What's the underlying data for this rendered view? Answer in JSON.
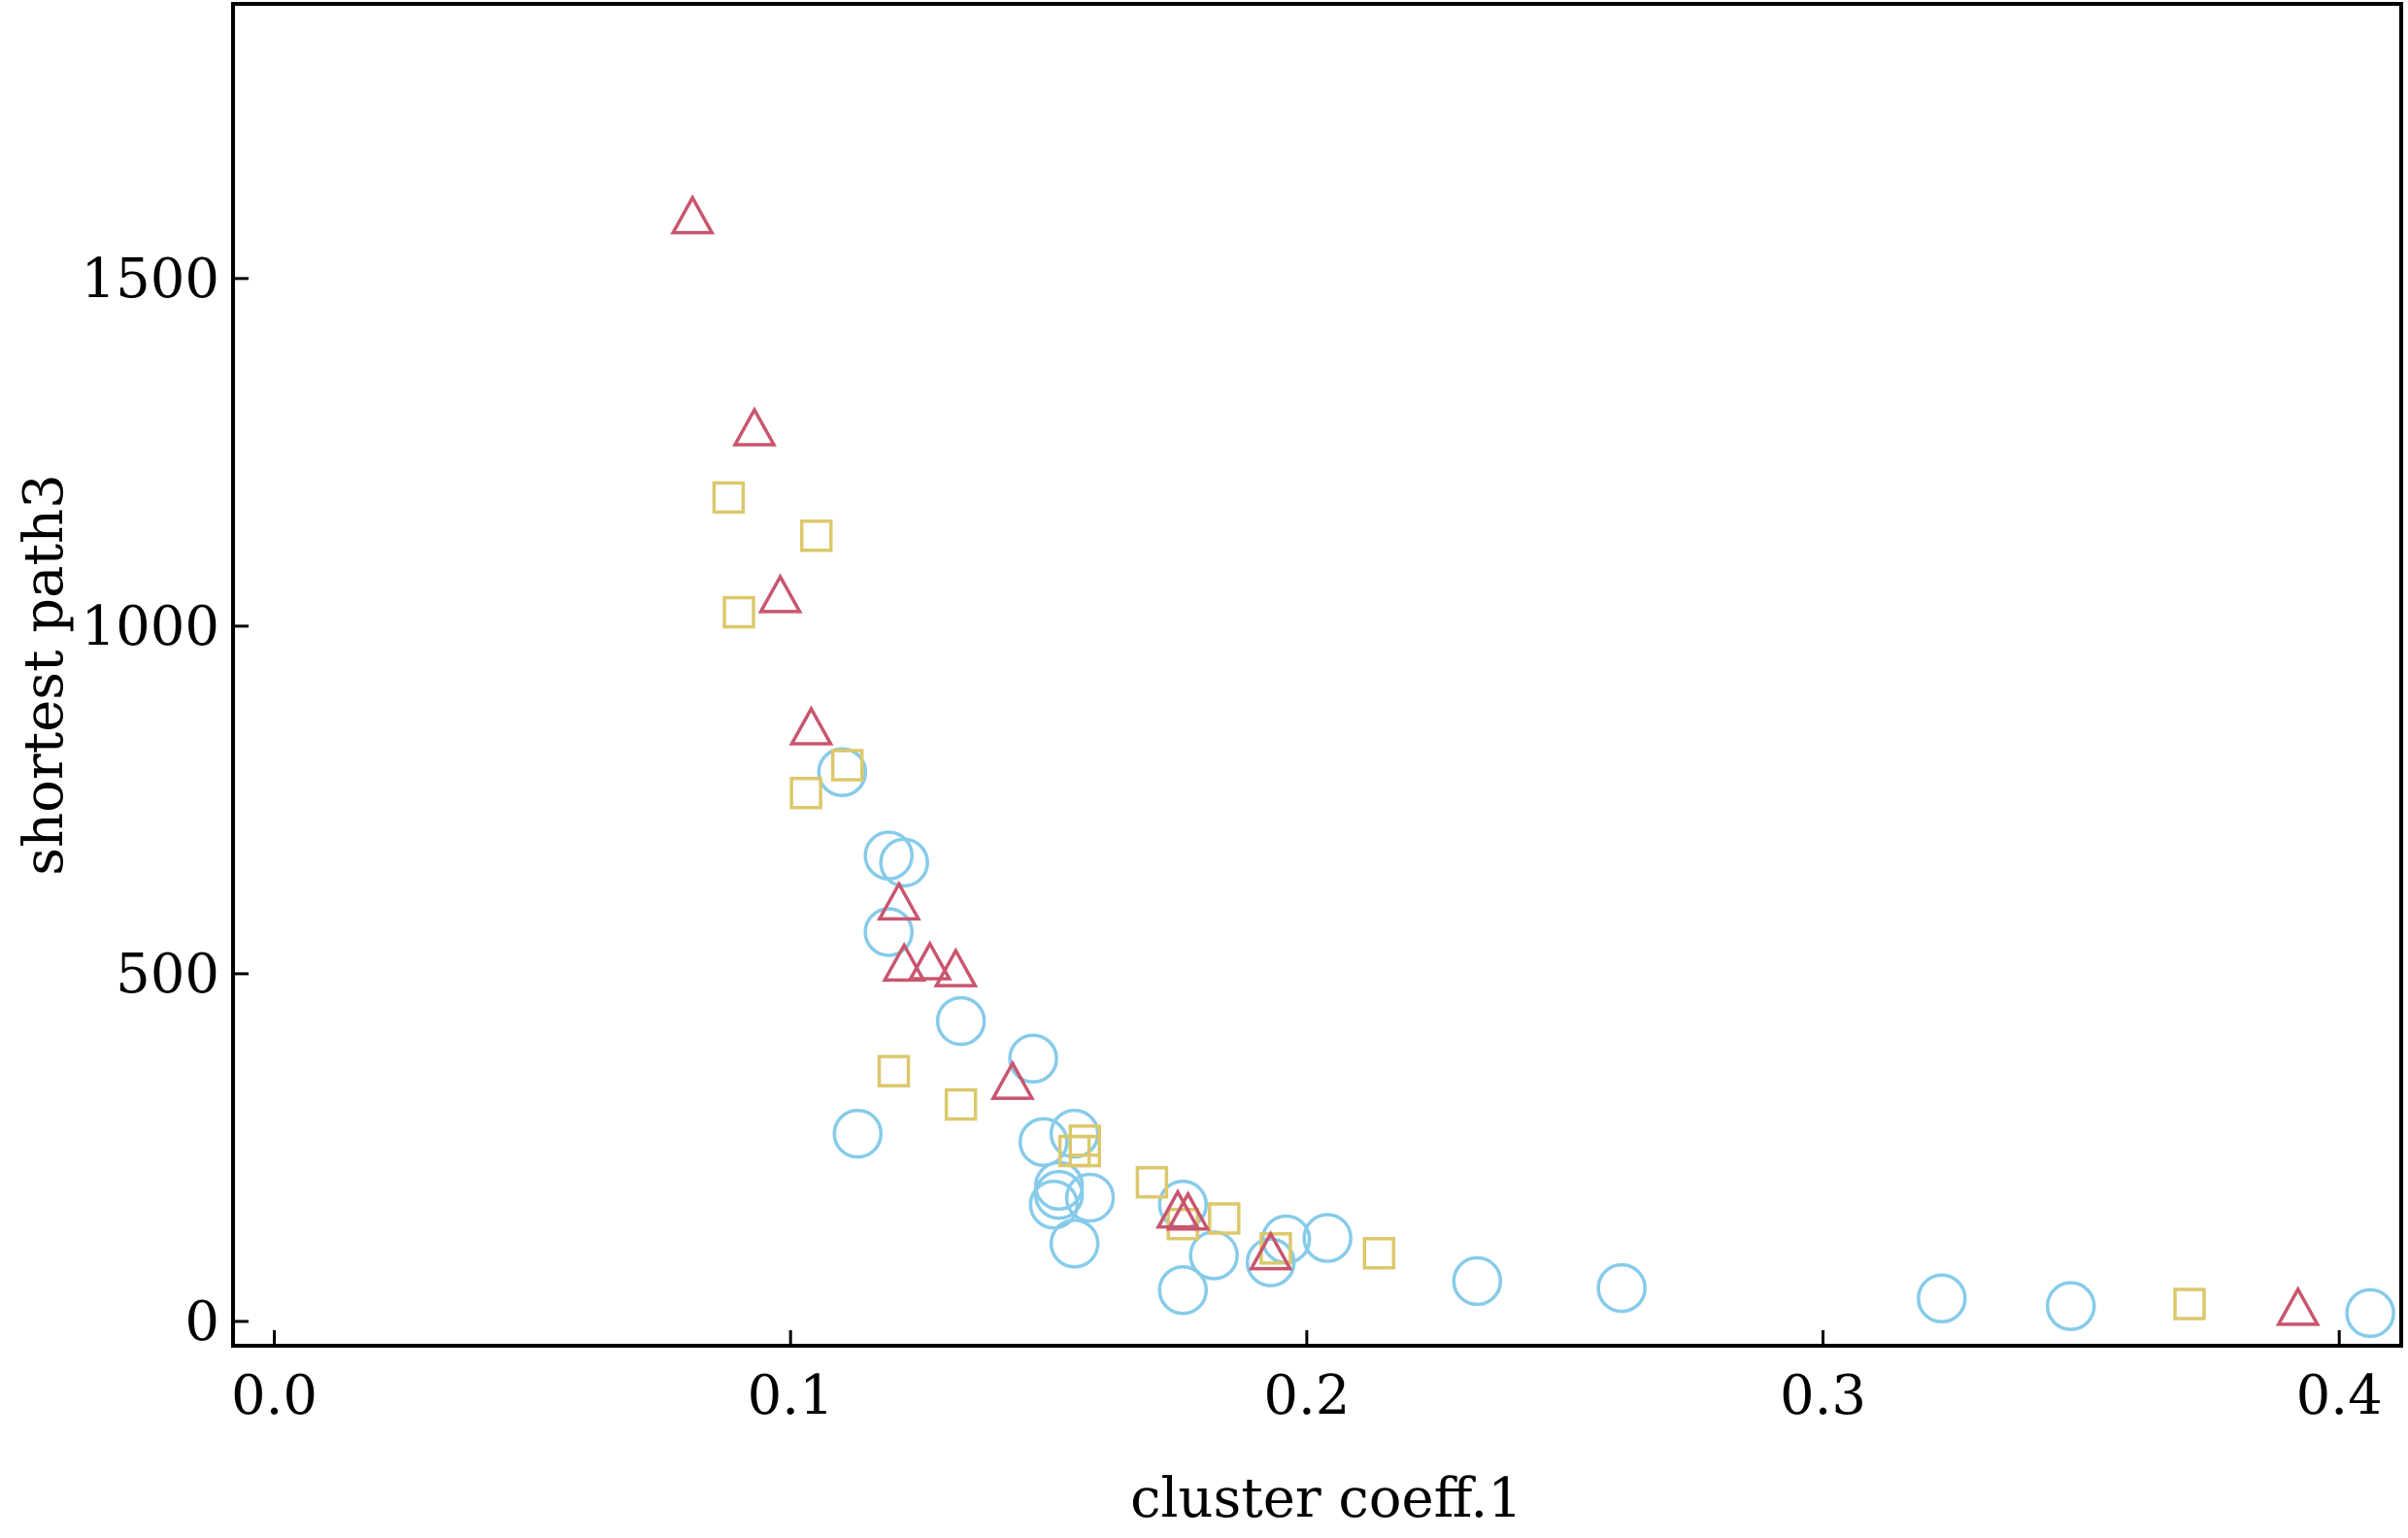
{
  "chart_data": {
    "type": "scatter",
    "xlabel": "cluster coeff.1",
    "ylabel": "shortest path3",
    "xlim": [
      -0.008,
      0.412
    ],
    "ylim": [
      -35,
      1895
    ],
    "xticks": [
      0.0,
      0.1,
      0.2,
      0.3,
      0.4
    ],
    "xtick_labels": [
      "0.0",
      "0.1",
      "0.2",
      "0.3",
      "0.4"
    ],
    "yticks": [
      0,
      500,
      1000,
      1500
    ],
    "ytick_labels": [
      "0",
      "500",
      "1000",
      "1500"
    ],
    "grid": false,
    "legend": "none",
    "series": [
      {
        "marker": "circle",
        "color": "#87cbea",
        "points": [
          [
            0.11,
            790
          ],
          [
            0.119,
            670
          ],
          [
            0.122,
            660
          ],
          [
            0.119,
            560
          ],
          [
            0.133,
            432
          ],
          [
            0.147,
            378
          ],
          [
            0.113,
            270
          ],
          [
            0.149,
            258
          ],
          [
            0.155,
            270
          ],
          [
            0.152,
            195
          ],
          [
            0.152,
            182
          ],
          [
            0.151,
            168
          ],
          [
            0.158,
            178
          ],
          [
            0.155,
            112
          ],
          [
            0.176,
            168
          ],
          [
            0.182,
            95
          ],
          [
            0.176,
            45
          ],
          [
            0.193,
            85
          ],
          [
            0.196,
            118
          ],
          [
            0.204,
            120
          ],
          [
            0.233,
            58
          ],
          [
            0.261,
            48
          ],
          [
            0.323,
            33
          ],
          [
            0.348,
            22
          ],
          [
            0.406,
            12
          ]
        ]
      },
      {
        "marker": "square",
        "color": "#dcc86c",
        "points": [
          [
            0.088,
            1185
          ],
          [
            0.105,
            1130
          ],
          [
            0.09,
            1020
          ],
          [
            0.111,
            800
          ],
          [
            0.103,
            760
          ],
          [
            0.12,
            360
          ],
          [
            0.133,
            312
          ],
          [
            0.155,
            245
          ],
          [
            0.157,
            260
          ],
          [
            0.157,
            245
          ],
          [
            0.17,
            200
          ],
          [
            0.176,
            140
          ],
          [
            0.184,
            148
          ],
          [
            0.194,
            105
          ],
          [
            0.214,
            98
          ],
          [
            0.371,
            25
          ]
        ]
      },
      {
        "marker": "triangle",
        "color": "#c8566e",
        "points": [
          [
            0.081,
            1585
          ],
          [
            0.093,
            1280
          ],
          [
            0.098,
            1040
          ],
          [
            0.104,
            850
          ],
          [
            0.121,
            598
          ],
          [
            0.122,
            510
          ],
          [
            0.127,
            512
          ],
          [
            0.132,
            502
          ],
          [
            0.143,
            340
          ],
          [
            0.175,
            155
          ],
          [
            0.177,
            152
          ],
          [
            0.193,
            95
          ],
          [
            0.392,
            15
          ]
        ]
      }
    ]
  }
}
